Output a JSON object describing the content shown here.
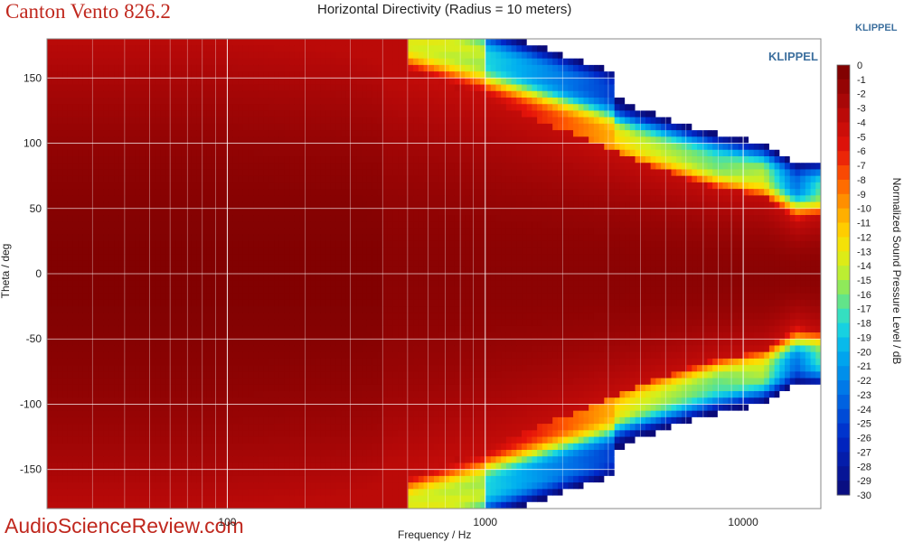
{
  "header": {
    "brand": "Canton Vento 826.2",
    "corner_logo": "KLIPPEL",
    "watermark": "AudioScienceReview.com"
  },
  "chart_data": {
    "type": "heatmap",
    "title": "Horizontal Directivity (Radius = 10 meters)",
    "xlabel": "Frequency / Hz",
    "ylabel": "Theta / deg",
    "colorbar_label": "Normalized Sound Pressure Level / dB",
    "x_scale": "log",
    "xlim": [
      20,
      20000
    ],
    "ylim": [
      -180,
      180
    ],
    "x_ticks": [
      100,
      1000,
      10000
    ],
    "x_tick_labels": [
      "100",
      "1000",
      "10000"
    ],
    "y_ticks": [
      150,
      100,
      50,
      0,
      -50,
      -100,
      -150
    ],
    "y_tick_labels": [
      "150",
      "100",
      "50",
      "0",
      "-50",
      "-100",
      "-150"
    ],
    "colorbar_ticks": [
      0,
      -1,
      -2,
      -3,
      -4,
      -5,
      -6,
      -7,
      -8,
      -9,
      -10,
      -11,
      -12,
      -13,
      -14,
      -15,
      -16,
      -17,
      -18,
      -19,
      -20,
      -21,
      -22,
      -23,
      -24,
      -25,
      -26,
      -27,
      -28,
      -29,
      -30
    ],
    "colorbar_tick_labels": [
      "0",
      "-1",
      "-2",
      "-3",
      "-4",
      "-5",
      "-6",
      "-7",
      "-8",
      "-9",
      "-10",
      "-11",
      "-12",
      "-13",
      "-14",
      "-15",
      "-16",
      "-17",
      "-18",
      "-19",
      "-20",
      "-21",
      "-22",
      "-23",
      "-24",
      "-25",
      "-26",
      "-27",
      "-28",
      "-29",
      "-30"
    ],
    "clim": [
      -30,
      0
    ],
    "grid": true,
    "plot_logo": "KLIPPEL",
    "beamwidth_profile": {
      "note_levels": "approximate -6 dB beam edge (deg) vs frequency (Hz), estimated from contours",
      "frequency_hz": [
        20,
        100,
        300,
        600,
        1000,
        2000,
        4000,
        8000,
        12000,
        16000,
        20000
      ],
      "edge_deg": [
        180,
        180,
        170,
        150,
        135,
        110,
        85,
        65,
        60,
        38,
        45
      ]
    },
    "colors": {
      "plot_bg": "#8b0000",
      "no_data": "#ffffff",
      "grid": "#ffffff"
    }
  }
}
